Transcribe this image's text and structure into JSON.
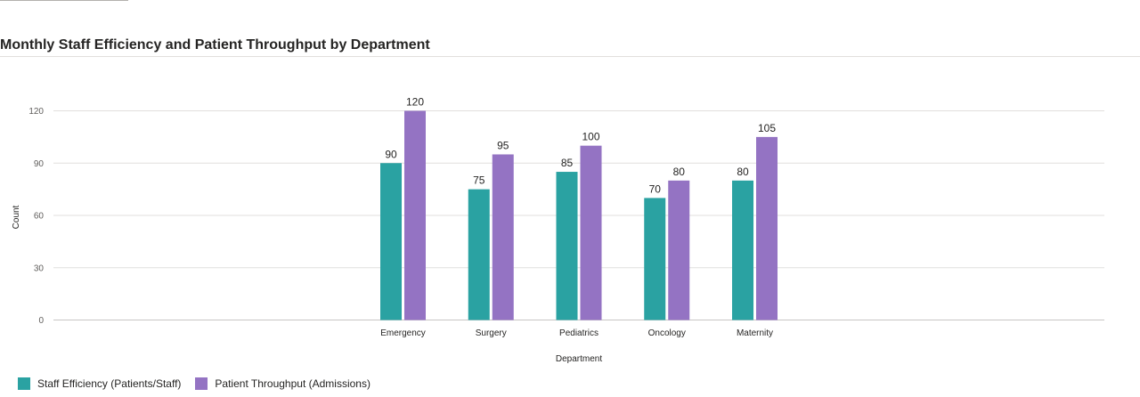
{
  "chart_data": {
    "type": "bar",
    "title": "Monthly Staff Efficiency and Patient Throughput by Department",
    "xlabel": "Department",
    "ylabel": "Count",
    "categories": [
      "Emergency",
      "Surgery",
      "Pediatrics",
      "Oncology",
      "Maternity"
    ],
    "series": [
      {
        "name": "Staff Efficiency (Patients/Staff)",
        "values": [
          90,
          75,
          85,
          70,
          80
        ],
        "color": "#2aa2a2"
      },
      {
        "name": "Patient Throughput (Admissions)",
        "values": [
          120,
          95,
          100,
          80,
          105
        ],
        "color": "#9473c3"
      }
    ],
    "yticks": [
      0,
      30,
      60,
      90,
      120
    ],
    "ylim": [
      0,
      120
    ],
    "grid": true,
    "legend_position": "bottom-left",
    "data_labels": true
  }
}
